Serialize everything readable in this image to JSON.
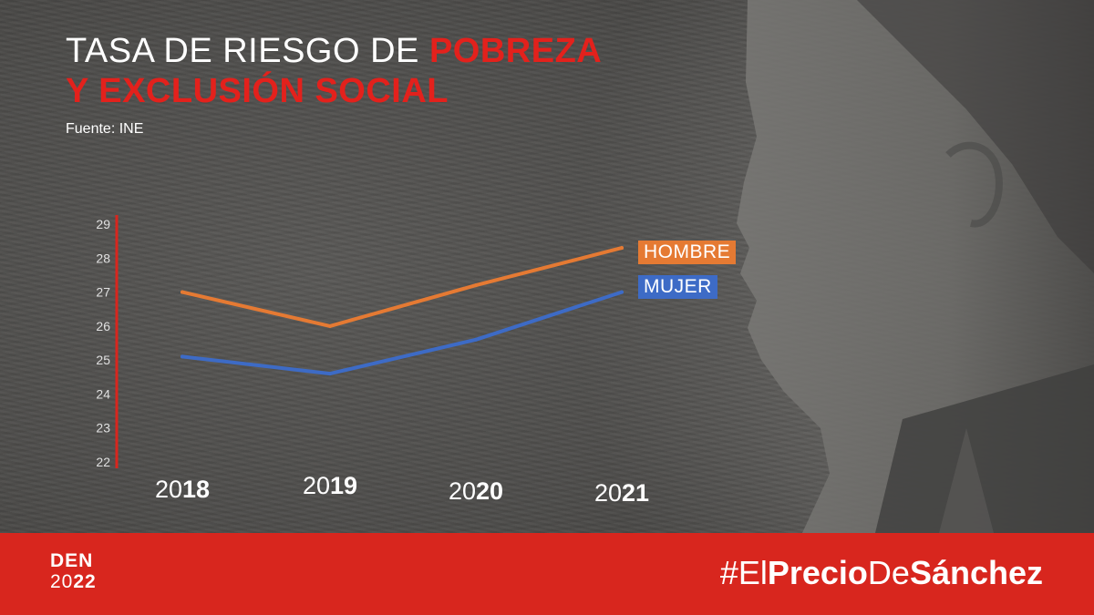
{
  "title": {
    "part1": "TASA DE RIESGO DE ",
    "part2": "POBREZA",
    "line2": "Y EXCLUSIÓN SOCIAL"
  },
  "source": "Fuente: INE",
  "colors": {
    "accent": "#e3211c",
    "hombre": "#e57a33",
    "mujer": "#3d6bc6",
    "footer": "#d8261e"
  },
  "chart_data": {
    "type": "line",
    "title": "TASA DE RIESGO DE POBREZA Y EXCLUSIÓN SOCIAL",
    "x": [
      "2018",
      "2019",
      "2020",
      "2021"
    ],
    "x_tick_labels": [
      {
        "light": "20",
        "bold": "18"
      },
      {
        "light": "20",
        "bold": "19"
      },
      {
        "light": "20",
        "bold": "20"
      },
      {
        "light": "20",
        "bold": "21"
      }
    ],
    "y_ticks": [
      29,
      28,
      27,
      26,
      25,
      24,
      23,
      22
    ],
    "ylim": [
      22,
      29
    ],
    "grid": false,
    "legend_placement": "right",
    "series": [
      {
        "name": "HOMBRE",
        "color": "#e57a33",
        "values": [
          27.0,
          26.0,
          27.2,
          28.3
        ]
      },
      {
        "name": "MUJER",
        "color": "#3d6bc6",
        "values": [
          25.1,
          24.6,
          25.6,
          27.0
        ]
      }
    ]
  },
  "footer": {
    "logo_line1": "DEN",
    "logo_line2_light": "20",
    "logo_line2_bold": "22",
    "hashtag": [
      {
        "text": "#El",
        "bold": false
      },
      {
        "text": "Precio",
        "bold": true
      },
      {
        "text": "De",
        "bold": false
      },
      {
        "text": "Sánchez",
        "bold": true
      }
    ]
  }
}
